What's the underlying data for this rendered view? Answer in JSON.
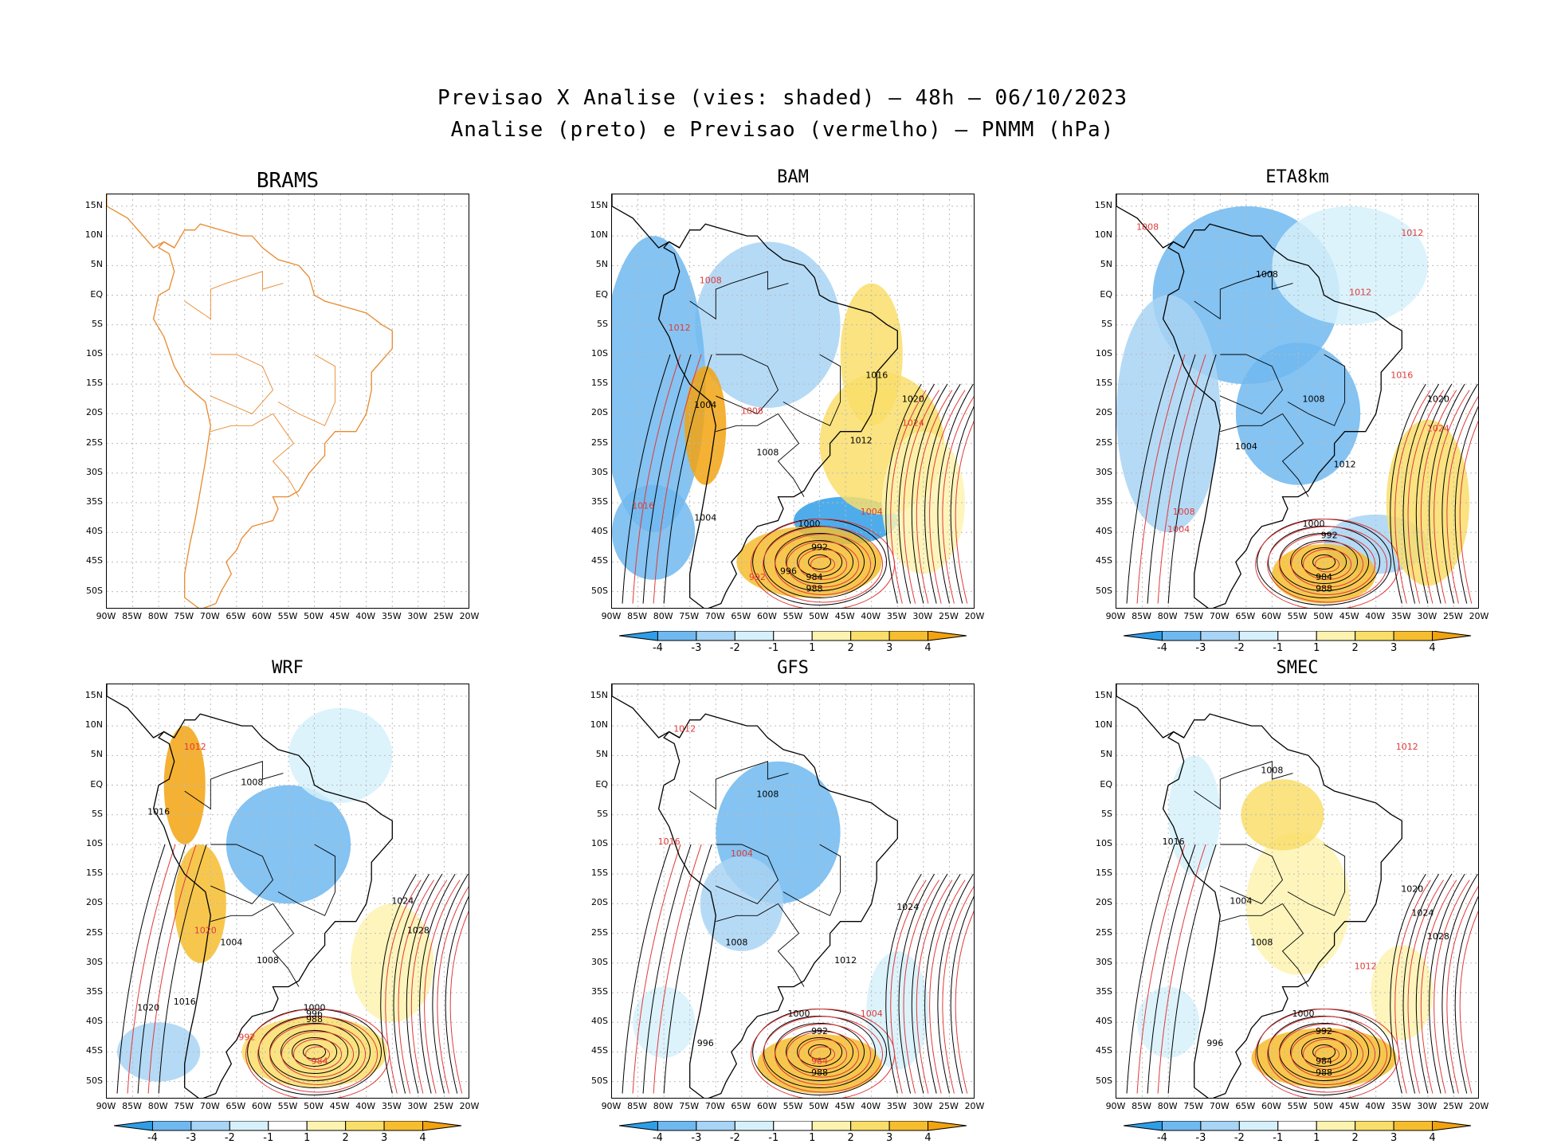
{
  "header": {
    "line1": "Previsao X Analise (vies: shaded) – 48h – 06/10/2023",
    "line2": "Analise (preto) e Previsao (vermelho) – PNMM (hPa)"
  },
  "panels": [
    {
      "name": "BRAMS",
      "colorbar": false
    },
    {
      "name": "BAM",
      "colorbar": true
    },
    {
      "name": "ETA8km",
      "colorbar": true
    },
    {
      "name": "WRF",
      "colorbar": true
    },
    {
      "name": "GFS",
      "colorbar": true
    },
    {
      "name": "SMEC",
      "colorbar": true
    }
  ],
  "axes": {
    "lat_labels": [
      "15N",
      "10N",
      "5N",
      "EQ",
      "5S",
      "10S",
      "15S",
      "20S",
      "25S",
      "30S",
      "35S",
      "40S",
      "45S",
      "50S"
    ],
    "lon_labels": [
      "90W",
      "85W",
      "80W",
      "75W",
      "70W",
      "65W",
      "60W",
      "55W",
      "50W",
      "45W",
      "40W",
      "35W",
      "30W",
      "25W",
      "20W"
    ],
    "lat_range": [
      -53,
      17
    ],
    "lon_range": [
      -90,
      -20
    ]
  },
  "colorbar": {
    "labels": [
      "-4",
      "-3",
      "-2",
      "-1",
      "1",
      "2",
      "3",
      "4"
    ],
    "colors": [
      "#2f9ee8",
      "#6fb8f0",
      "#a8d4f5",
      "#d6f1fb",
      "#ffffff",
      "#fdf3b0",
      "#f9de6a",
      "#f6bd2e",
      "#f2a30f"
    ]
  },
  "colors": {
    "analysis_contour": "#000000",
    "forecast_contour": "#e03a3a",
    "coastline_brams": "#e8892e"
  },
  "isobar_labels": {
    "BAM": [
      "1012",
      "1008",
      "1004",
      "1008",
      "1016",
      "1020",
      "1024",
      "1012",
      "1008",
      "1004",
      "1000",
      "992",
      "996",
      "984",
      "988",
      "992",
      "1004",
      "1016"
    ],
    "ETA8km": [
      "1008",
      "1012",
      "1008",
      "1012",
      "1016",
      "1020",
      "1024",
      "1012",
      "1008",
      "1004",
      "1000",
      "992",
      "984",
      "988",
      "1004",
      "1008"
    ],
    "WRF": [
      "1012",
      "1008",
      "1016",
      "1020",
      "1024",
      "1028",
      "1004",
      "1000",
      "996",
      "988",
      "992",
      "984",
      "1020",
      "1016",
      "1008"
    ],
    "GFS": [
      "1012",
      "1008",
      "1004",
      "1016",
      "1024",
      "1012",
      "1008",
      "1000",
      "992",
      "984",
      "988",
      "996",
      "1004"
    ],
    "SMEC": [
      "1012",
      "1008",
      "1004",
      "1016",
      "1020",
      "1024",
      "1028",
      "1012",
      "1008",
      "1000",
      "992",
      "984",
      "988",
      "996"
    ]
  }
}
